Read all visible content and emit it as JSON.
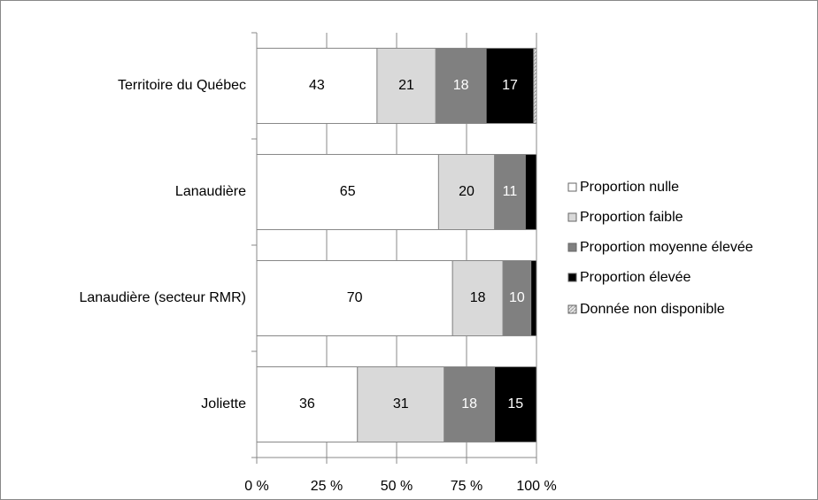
{
  "chart_data": {
    "type": "stacked_bar_horizontal",
    "categories": [
      "Territoire du Québec",
      "Lanaudière",
      "Lanaudière (secteur RMR)",
      "Joliette"
    ],
    "series": [
      {
        "name": "Proportion nulle",
        "color": "#ffffff",
        "values": [
          43,
          65,
          70,
          36
        ],
        "value_labels": [
          "43",
          "65",
          "70",
          "36"
        ]
      },
      {
        "name": "Proportion faible",
        "color": "#d9d9d9",
        "values": [
          21,
          20,
          18,
          31
        ],
        "value_labels": [
          "21",
          "20",
          "18",
          "31"
        ]
      },
      {
        "name": "Proportion moyenne élevée",
        "color": "#808080",
        "values": [
          18,
          11,
          10,
          18
        ],
        "value_labels": [
          "18",
          "11",
          "10",
          "18"
        ]
      },
      {
        "name": "Proportion élevée",
        "color": "#000000",
        "values": [
          17,
          4,
          2,
          15
        ],
        "value_labels": [
          "17",
          null,
          null,
          "15"
        ]
      },
      {
        "name": "Donnée non disponible",
        "color": "#e6e6e6",
        "values": [
          1,
          0,
          0,
          0
        ],
        "value_labels": [
          null,
          null,
          null,
          null
        ]
      }
    ],
    "xlim": [
      0,
      100
    ],
    "xticks": [
      {
        "value": 0,
        "label": "0 %"
      },
      {
        "value": 25,
        "label": "25 %"
      },
      {
        "value": 50,
        "label": "50 %"
      },
      {
        "value": 75,
        "label": "75 %"
      },
      {
        "value": 100,
        "label": "100 %"
      }
    ],
    "grid": true,
    "legend": "right"
  }
}
